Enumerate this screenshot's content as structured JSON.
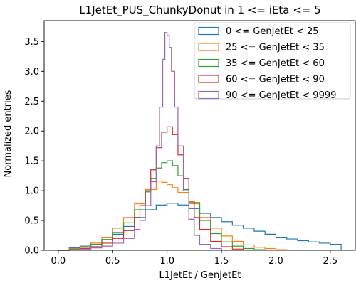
{
  "chart_data": {
    "type": "step-histogram",
    "title": "L1JetEt_PUS_ChunkyDonut in 1 <= iEta <= 5",
    "xlabel": "L1JetEt / GenJetEt",
    "ylabel": "Normalized entries",
    "xlim": [
      -0.13,
      2.73
    ],
    "ylim": [
      0,
      3.85
    ],
    "xticks": [
      "0.0",
      "0.5",
      "1.0",
      "1.5",
      "2.0",
      "2.5"
    ],
    "yticks": [
      "0.0",
      "0.5",
      "1.0",
      "1.5",
      "2.0",
      "2.5",
      "3.0",
      "3.5"
    ],
    "grid": false,
    "legend_location": "upper right",
    "series": [
      {
        "name": "0 <= GenJetEt < 25",
        "color": "#1f77b4",
        "x": [
          0.0,
          0.1,
          0.2,
          0.3,
          0.4,
          0.5,
          0.6,
          0.7,
          0.8,
          0.9,
          1.0,
          1.1,
          1.2,
          1.3,
          1.4,
          1.5,
          1.6,
          1.7,
          1.8,
          1.9,
          2.0,
          2.1,
          2.2,
          2.3,
          2.4,
          2.5,
          2.6
        ],
        "y": [
          0.0,
          0.04,
          0.07,
          0.12,
          0.18,
          0.27,
          0.4,
          0.55,
          0.68,
          0.76,
          0.79,
          0.76,
          0.7,
          0.62,
          0.55,
          0.48,
          0.42,
          0.37,
          0.32,
          0.27,
          0.22,
          0.19,
          0.16,
          0.14,
          0.12,
          0.1,
          0.0
        ]
      },
      {
        "name": "25 <= GenJetEt < 35",
        "color": "#ff7f0e",
        "x": [
          0.0,
          0.1,
          0.2,
          0.3,
          0.4,
          0.5,
          0.6,
          0.7,
          0.8,
          0.9,
          0.95,
          1.0,
          1.05,
          1.1,
          1.2,
          1.3,
          1.4,
          1.5,
          1.6,
          1.7,
          1.8,
          1.9,
          2.0,
          2.1
        ],
        "y": [
          0.0,
          0.03,
          0.06,
          0.12,
          0.22,
          0.37,
          0.55,
          0.78,
          1.02,
          1.16,
          1.14,
          1.1,
          1.05,
          0.97,
          0.78,
          0.55,
          0.37,
          0.24,
          0.15,
          0.09,
          0.05,
          0.03,
          0.01,
          0.0
        ]
      },
      {
        "name": "35 <= GenJetEt < 60",
        "color": "#2ca02c",
        "x": [
          0.0,
          0.1,
          0.2,
          0.3,
          0.4,
          0.5,
          0.6,
          0.7,
          0.8,
          0.85,
          0.9,
          0.95,
          1.0,
          1.05,
          1.1,
          1.15,
          1.2,
          1.3,
          1.4,
          1.5,
          1.6,
          1.7,
          1.8,
          1.9
        ],
        "y": [
          0.0,
          0.02,
          0.05,
          0.1,
          0.18,
          0.3,
          0.46,
          0.68,
          0.98,
          1.2,
          1.38,
          1.47,
          1.5,
          1.42,
          1.25,
          1.02,
          0.8,
          0.5,
          0.28,
          0.14,
          0.07,
          0.03,
          0.01,
          0.0
        ]
      },
      {
        "name": "60 <= GenJetEt < 90",
        "color": "#d62728",
        "x": [
          0.0,
          0.1,
          0.2,
          0.3,
          0.4,
          0.5,
          0.6,
          0.7,
          0.75,
          0.8,
          0.85,
          0.9,
          0.95,
          1.0,
          1.05,
          1.1,
          1.15,
          1.2,
          1.25,
          1.3,
          1.4,
          1.5,
          1.6,
          1.7
        ],
        "y": [
          0.0,
          0.01,
          0.03,
          0.06,
          0.12,
          0.2,
          0.33,
          0.55,
          0.75,
          1.0,
          1.35,
          1.72,
          1.98,
          2.07,
          1.94,
          1.6,
          1.2,
          0.82,
          0.55,
          0.35,
          0.15,
          0.06,
          0.02,
          0.0
        ]
      },
      {
        "name": "90 <= GenJetEt < 9999",
        "color": "#9467bd",
        "x": [
          0.0,
          0.1,
          0.2,
          0.3,
          0.4,
          0.5,
          0.6,
          0.7,
          0.75,
          0.8,
          0.85,
          0.9,
          0.93,
          0.96,
          0.98,
          1.0,
          1.02,
          1.04,
          1.07,
          1.1,
          1.15,
          1.2,
          1.25,
          1.3,
          1.4,
          1.5
        ],
        "y": [
          0.0,
          0.01,
          0.02,
          0.04,
          0.07,
          0.12,
          0.2,
          0.35,
          0.5,
          0.75,
          1.15,
          1.75,
          2.4,
          3.2,
          3.65,
          3.6,
          3.4,
          3.0,
          2.4,
          1.75,
          1.0,
          0.52,
          0.25,
          0.1,
          0.03,
          0.0
        ]
      }
    ]
  }
}
